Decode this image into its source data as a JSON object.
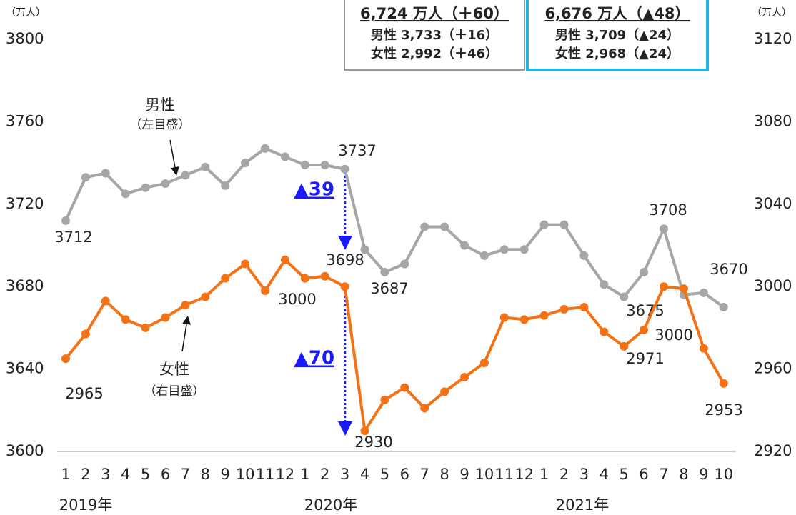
{
  "chart_data": {
    "type": "line",
    "categories": [
      "1",
      "2",
      "3",
      "4",
      "5",
      "6",
      "7",
      "8",
      "9",
      "10",
      "11",
      "12",
      "1",
      "2",
      "3",
      "4",
      "5",
      "6",
      "7",
      "8",
      "9",
      "10",
      "11",
      "12",
      "1",
      "2",
      "3",
      "4",
      "5",
      "6",
      "7",
      "8",
      "9",
      "10"
    ],
    "year_labels": [
      "2019年",
      "2020年",
      "2021年"
    ],
    "y_unit": "（万人）",
    "y2_unit": "（万人）",
    "ylim": [
      3600,
      3800
    ],
    "yticks": [
      3600,
      3640,
      3680,
      3720,
      3760,
      3800
    ],
    "y2lim": [
      2920,
      3120
    ],
    "y2ticks": [
      2920,
      2960,
      3000,
      3040,
      3080,
      3120
    ],
    "series": [
      {
        "name": "男性",
        "note": "（左目盛）",
        "color": "#a6a6a6",
        "values": [
          3712,
          3733,
          3735,
          3725,
          3728,
          3730,
          3734,
          3738,
          3729,
          3740,
          3747,
          3743,
          3739,
          3739,
          3737,
          3698,
          3687,
          3691,
          3709,
          3709,
          3700,
          3695,
          3698,
          3698,
          3710,
          3710,
          3695,
          3681,
          3675,
          3687,
          3708,
          3676,
          3677,
          3670
        ],
        "label_indices": [
          0,
          14,
          15,
          16,
          28,
          30,
          33
        ]
      },
      {
        "name": "女性",
        "note": "（右目盛）",
        "color": "#f47216",
        "axis": "y2",
        "values": [
          2965,
          2977,
          2993,
          2984,
          2980,
          2985,
          2991,
          2995,
          3004,
          3011,
          2998,
          3013,
          3004,
          3005,
          3000,
          2930,
          2945,
          2951,
          2941,
          2949,
          2956,
          2963,
          2985,
          2984,
          2986,
          2989,
          2990,
          2978,
          2971,
          2979,
          3000,
          2999,
          2970,
          2953
        ],
        "label_indices": [
          0,
          14,
          15,
          28,
          30,
          33
        ]
      }
    ],
    "annotations": {
      "male_drop": "▲39",
      "female_drop": "▲70"
    },
    "boxes": [
      {
        "total": "6,724 万人（＋60）",
        "male": "男性 3,733（＋16）",
        "female": "女性 2,992（＋46）"
      },
      {
        "total": "6,676 万人（▲48）",
        "male": "男性 3,709（▲24）",
        "female": "女性 2,968（▲24）"
      }
    ]
  }
}
